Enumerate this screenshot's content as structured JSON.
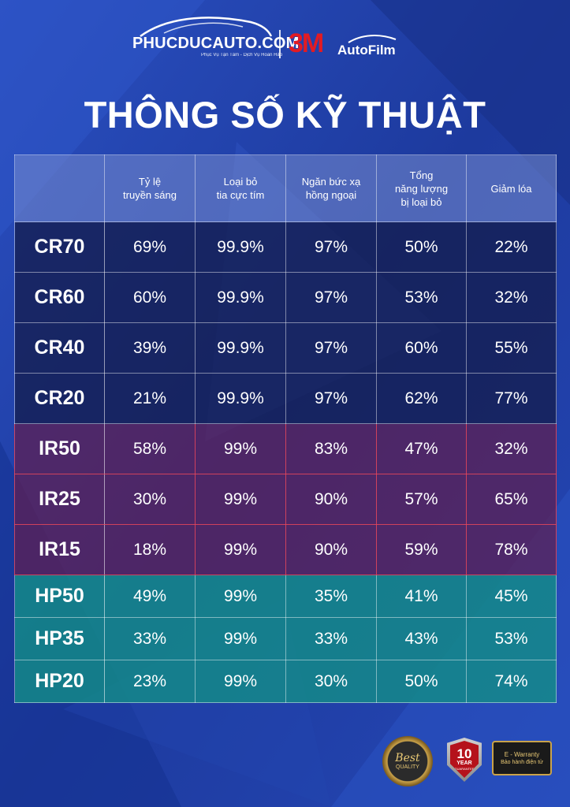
{
  "header": {
    "site_name": "PHUCDUCAUTO.COM",
    "site_tagline": "Phục Vụ Tận Tâm - Dịch Vụ Hoàn Hảo",
    "brand_3m": "3M",
    "brand_product": "AutoFilm"
  },
  "title": "THÔNG SỐ KỸ THUẬT",
  "table": {
    "headers": [
      {
        "line1": "",
        "line2": "",
        "line3": ""
      },
      {
        "line1": "Tỷ lệ",
        "line2": "truyền sáng",
        "line3": ""
      },
      {
        "line1": "Loại bỏ",
        "line2": "tia cực tím",
        "line3": ""
      },
      {
        "line1": "Ngăn bức xạ",
        "line2": "hồng ngoại",
        "line3": ""
      },
      {
        "line1": "Tổng",
        "line2": "năng lượng",
        "line3": "bị loại bỏ"
      },
      {
        "line1": "Giảm lóa",
        "line2": "",
        "line3": ""
      }
    ],
    "rows": [
      {
        "group": "cr",
        "name": "CR70",
        "values": [
          "69%",
          "99.9%",
          "97%",
          "50%",
          "22%"
        ]
      },
      {
        "group": "cr",
        "name": "CR60",
        "values": [
          "60%",
          "99.9%",
          "97%",
          "53%",
          "32%"
        ]
      },
      {
        "group": "cr",
        "name": "CR40",
        "values": [
          "39%",
          "99.9%",
          "97%",
          "60%",
          "55%"
        ]
      },
      {
        "group": "cr",
        "name": "CR20",
        "values": [
          "21%",
          "99.9%",
          "97%",
          "62%",
          "77%"
        ]
      },
      {
        "group": "ir",
        "name": "IR50",
        "values": [
          "58%",
          "99%",
          "83%",
          "47%",
          "32%"
        ]
      },
      {
        "group": "ir",
        "name": "IR25",
        "values": [
          "30%",
          "99%",
          "90%",
          "57%",
          "65%"
        ]
      },
      {
        "group": "ir",
        "name": "IR15",
        "values": [
          "18%",
          "99%",
          "90%",
          "59%",
          "78%"
        ]
      },
      {
        "group": "hp",
        "name": "HP50",
        "values": [
          "49%",
          "99%",
          "35%",
          "41%",
          "45%"
        ]
      },
      {
        "group": "hp",
        "name": "HP35",
        "values": [
          "33%",
          "99%",
          "33%",
          "43%",
          "53%"
        ]
      },
      {
        "group": "hp",
        "name": "HP20",
        "values": [
          "23%",
          "99%",
          "30%",
          "50%",
          "74%"
        ]
      }
    ]
  },
  "badges": {
    "best_quality_line1": "Best",
    "best_quality_line2": "QUALITY",
    "warranty_number": "10",
    "warranty_unit": "YEAR",
    "warranty_label": "GUARANTEE",
    "ewarranty_line1": "E - Warranty",
    "ewarranty_line2": "Bảo hành điện tử"
  },
  "colors": {
    "background": "#1f3fa6",
    "brand_red": "#e21b23",
    "cr_group": "#141e50",
    "ir_group": "#5f1e50",
    "hp_group": "#148c87"
  }
}
